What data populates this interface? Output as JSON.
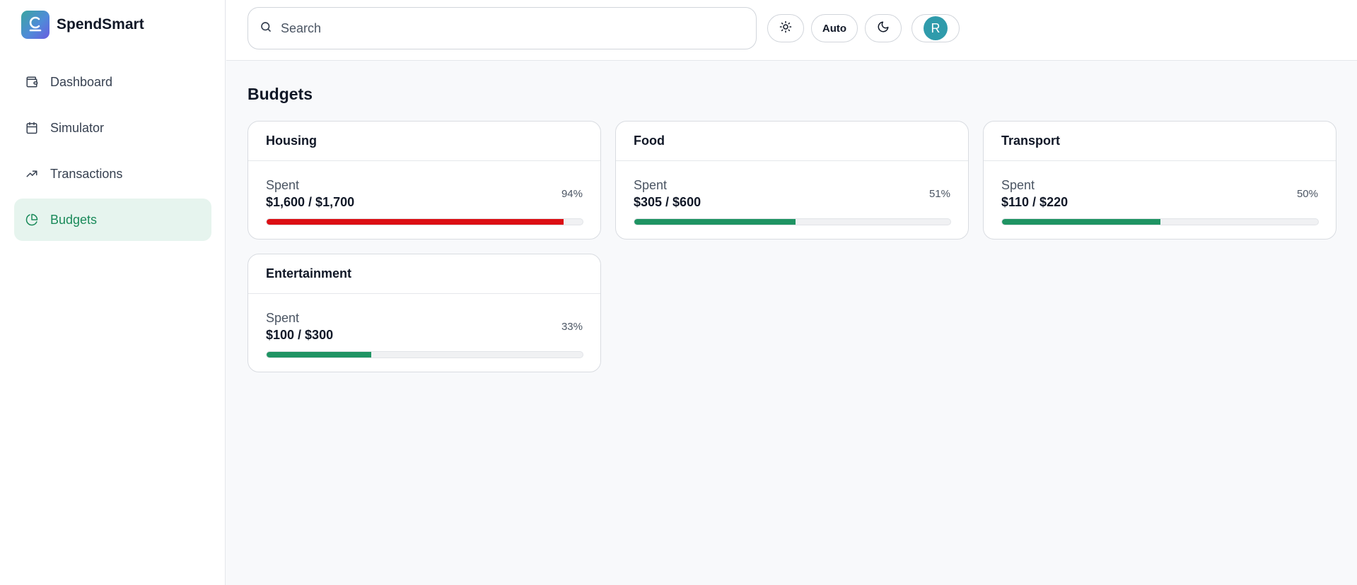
{
  "app": {
    "name": "SpendSmart"
  },
  "sidebar": {
    "items": [
      {
        "label": "Dashboard",
        "icon": "wallet-icon",
        "active": false
      },
      {
        "label": "Simulator",
        "icon": "calendar-icon",
        "active": false
      },
      {
        "label": "Transactions",
        "icon": "trend-icon",
        "active": false
      },
      {
        "label": "Budgets",
        "icon": "pie-chart-icon",
        "active": true
      }
    ]
  },
  "header": {
    "search_placeholder": "Search",
    "theme_auto_label": "Auto",
    "avatar_initial": "R"
  },
  "main": {
    "title": "Budgets",
    "spent_label": "Spent",
    "budgets": [
      {
        "name": "Housing",
        "amount": "$1,600 / $1,700",
        "percent_label": "94%",
        "percent": 94,
        "color": "#dc0f14"
      },
      {
        "name": "Food",
        "amount": "$305 / $600",
        "percent_label": "51%",
        "percent": 51,
        "color": "#1f9463"
      },
      {
        "name": "Transport",
        "amount": "$110 / $220",
        "percent_label": "50%",
        "percent": 50,
        "color": "#1f9463"
      },
      {
        "name": "Entertainment",
        "amount": "$100 / $300",
        "percent_label": "33%",
        "percent": 33,
        "color": "#1f9463"
      }
    ]
  },
  "colors": {
    "accent": "#1a8a5a",
    "active_bg": "#e6f4ee",
    "over_budget": "#dc0f14",
    "avatar": "#2f9bab"
  }
}
